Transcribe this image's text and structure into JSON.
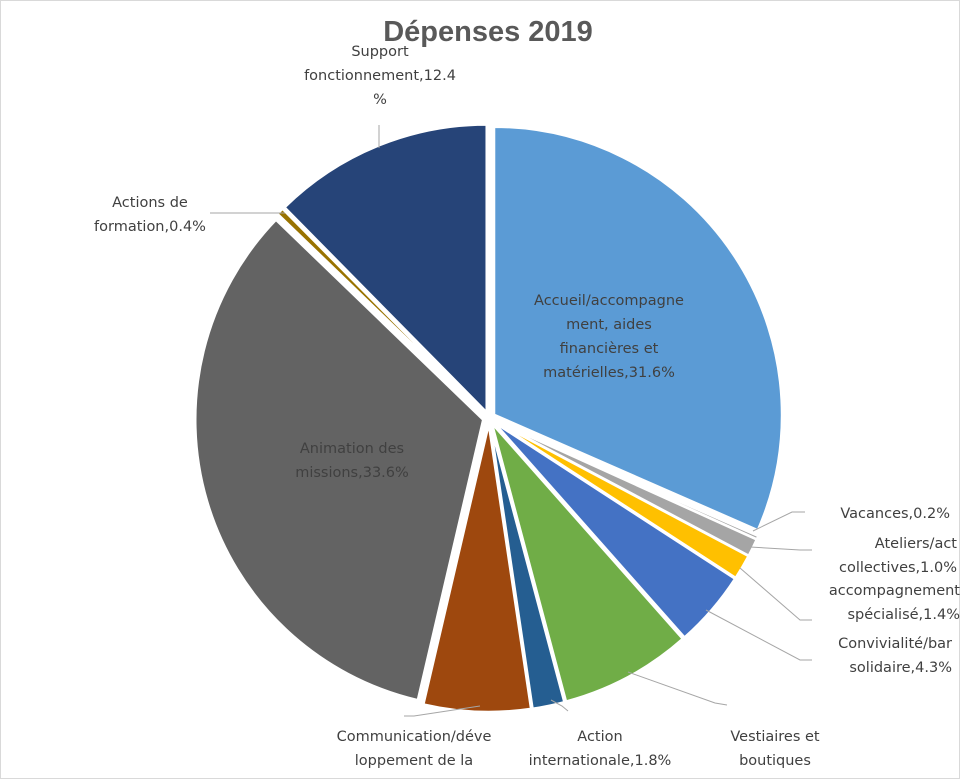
{
  "chart_data": {
    "type": "pie",
    "title": "Dépenses 2019",
    "start_angle_deg": 0,
    "slices": [
      {
        "name": "Accueil/accompagnement, aides financières et matérielles",
        "value": 31.6,
        "label": "31.6%",
        "color": "#5B9BD5",
        "label_lines": [
          "Accueil/accompagne",
          "ment, aides",
          "financières et",
          "matérielles,31.6%"
        ]
      },
      {
        "name": "Vacances",
        "value": 0.2,
        "label": "0.2%",
        "color": "#A5A5A5",
        "label_lines": [
          "Vacances,0.2%"
        ]
      },
      {
        "name": "Ateliers/act collectives",
        "value": 1.0,
        "label": "1.0%",
        "color": "#A5A5A5",
        "label_lines": [
          "Ateliers/act",
          "collectives,1.0%"
        ]
      },
      {
        "name": "accompagnement spécialisé",
        "value": 1.4,
        "label": "1.4%",
        "color": "#FFC000",
        "label_lines": [
          "accompagnement",
          "spécialisé,1.4%"
        ]
      },
      {
        "name": "Convivialité/bar solidaire",
        "value": 4.3,
        "label": "4.3%",
        "color": "#4472C4",
        "label_lines": [
          "Convivialité/bar",
          "solidaire,4.3%"
        ]
      },
      {
        "name": "Vestiaires et boutiques",
        "value": 7.4,
        "label": "",
        "color": "#70AD47",
        "label_lines": [
          "Vestiaires et",
          "boutiques"
        ]
      },
      {
        "name": "Action internationale",
        "value": 1.8,
        "label": "1.8%",
        "color": "#255E91",
        "label_lines": [
          "Action",
          "internationale,1.8%"
        ]
      },
      {
        "name": "Communication/développement de la",
        "value": 6.0,
        "label": "",
        "color": "#9E480E",
        "label_lines": [
          "Communication/déve",
          "loppement de la"
        ]
      },
      {
        "name": "Animation des missions",
        "value": 33.6,
        "label": "33.6%",
        "color": "#636363",
        "label_lines": [
          "Animation des",
          "missions,33.6%"
        ]
      },
      {
        "name": "Actions de formation",
        "value": 0.4,
        "label": "0.4%",
        "color": "#997300",
        "label_lines": [
          "Actions de",
          "formation,0.4%"
        ]
      },
      {
        "name": "Support fonctionnement",
        "value": 12.4,
        "label": "12.4%",
        "color": "#264478",
        "label_lines": [
          "Support",
          "fonctionnement,12.4",
          "%"
        ]
      }
    ]
  }
}
